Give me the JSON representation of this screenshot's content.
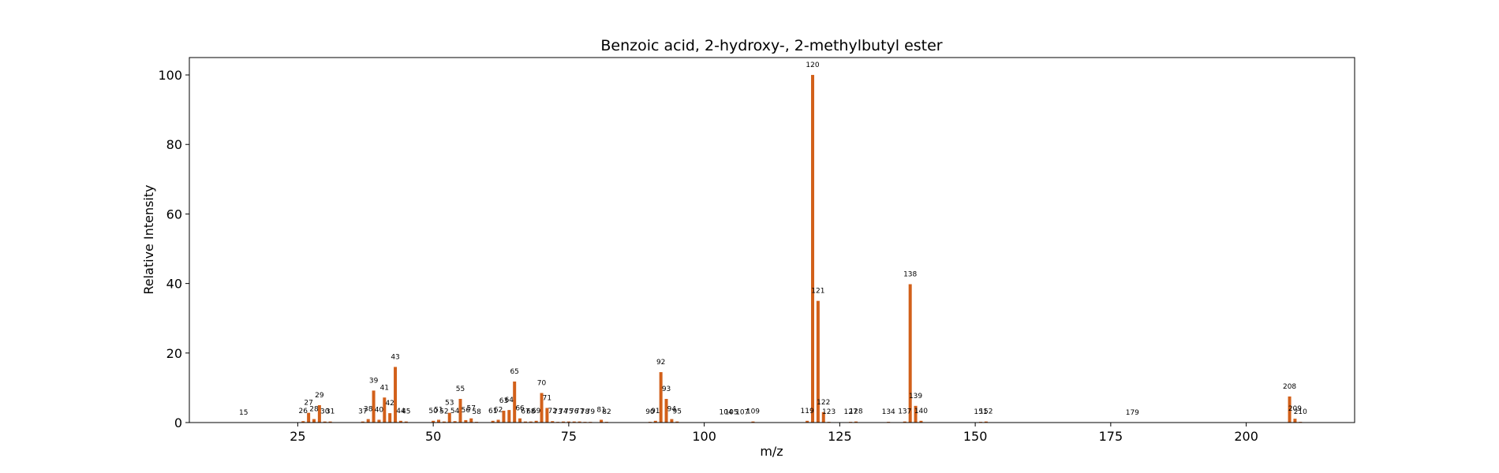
{
  "chart_data": {
    "type": "bar",
    "title": "Benzoic acid, 2-hydroxy-, 2-methylbutyl ester",
    "xlabel": "m/z",
    "ylabel": "Relative Intensity",
    "xlim": [
      5,
      220
    ],
    "ylim": [
      0,
      105
    ],
    "xticks": [
      25,
      50,
      75,
      100,
      125,
      150,
      175,
      200
    ],
    "yticks": [
      0,
      20,
      40,
      60,
      80,
      100
    ],
    "grid": false,
    "bar_color": "#D2601A",
    "peaks": [
      {
        "mz": 15,
        "intensity": 0.0
      },
      {
        "mz": 26,
        "intensity": 0.4
      },
      {
        "mz": 27,
        "intensity": 2.8
      },
      {
        "mz": 28,
        "intensity": 1.0
      },
      {
        "mz": 29,
        "intensity": 5.0
      },
      {
        "mz": 30,
        "intensity": 0.3
      },
      {
        "mz": 31,
        "intensity": 0.3
      },
      {
        "mz": 37,
        "intensity": 0.3
      },
      {
        "mz": 38,
        "intensity": 1.0
      },
      {
        "mz": 39,
        "intensity": 9.2
      },
      {
        "mz": 40,
        "intensity": 0.8
      },
      {
        "mz": 41,
        "intensity": 7.2
      },
      {
        "mz": 42,
        "intensity": 2.7
      },
      {
        "mz": 43,
        "intensity": 16.0
      },
      {
        "mz": 44,
        "intensity": 0.5
      },
      {
        "mz": 45,
        "intensity": 0.3
      },
      {
        "mz": 50,
        "intensity": 0.5
      },
      {
        "mz": 51,
        "intensity": 0.8
      },
      {
        "mz": 52,
        "intensity": 0.3
      },
      {
        "mz": 53,
        "intensity": 2.8
      },
      {
        "mz": 54,
        "intensity": 0.4
      },
      {
        "mz": 55,
        "intensity": 6.8
      },
      {
        "mz": 56,
        "intensity": 0.7
      },
      {
        "mz": 57,
        "intensity": 1.2
      },
      {
        "mz": 58,
        "intensity": 0.2
      },
      {
        "mz": 61,
        "intensity": 0.5
      },
      {
        "mz": 62,
        "intensity": 0.8
      },
      {
        "mz": 63,
        "intensity": 3.4
      },
      {
        "mz": 64,
        "intensity": 3.6
      },
      {
        "mz": 65,
        "intensity": 11.8
      },
      {
        "mz": 66,
        "intensity": 1.2
      },
      {
        "mz": 67,
        "intensity": 0.3
      },
      {
        "mz": 68,
        "intensity": 0.3
      },
      {
        "mz": 69,
        "intensity": 0.5
      },
      {
        "mz": 70,
        "intensity": 8.5
      },
      {
        "mz": 71,
        "intensity": 4.2
      },
      {
        "mz": 72,
        "intensity": 0.4
      },
      {
        "mz": 73,
        "intensity": 0.2
      },
      {
        "mz": 74,
        "intensity": 0.3
      },
      {
        "mz": 75,
        "intensity": 0.3
      },
      {
        "mz": 76,
        "intensity": 0.3
      },
      {
        "mz": 77,
        "intensity": 0.3
      },
      {
        "mz": 78,
        "intensity": 0.2
      },
      {
        "mz": 79,
        "intensity": 0.2
      },
      {
        "mz": 81,
        "intensity": 0.8
      },
      {
        "mz": 82,
        "intensity": 0.2
      },
      {
        "mz": 90,
        "intensity": 0.2
      },
      {
        "mz": 91,
        "intensity": 0.5
      },
      {
        "mz": 92,
        "intensity": 14.5
      },
      {
        "mz": 93,
        "intensity": 6.8
      },
      {
        "mz": 94,
        "intensity": 1.0
      },
      {
        "mz": 95,
        "intensity": 0.3
      },
      {
        "mz": 104,
        "intensity": 0.1
      },
      {
        "mz": 105,
        "intensity": 0.1
      },
      {
        "mz": 107,
        "intensity": 0.1
      },
      {
        "mz": 109,
        "intensity": 0.3
      },
      {
        "mz": 119,
        "intensity": 0.5
      },
      {
        "mz": 120,
        "intensity": 100.0
      },
      {
        "mz": 121,
        "intensity": 35.0
      },
      {
        "mz": 122,
        "intensity": 3.0
      },
      {
        "mz": 123,
        "intensity": 0.2
      },
      {
        "mz": 127,
        "intensity": 0.2
      },
      {
        "mz": 128,
        "intensity": 0.3
      },
      {
        "mz": 134,
        "intensity": 0.2
      },
      {
        "mz": 137,
        "intensity": 0.3
      },
      {
        "mz": 138,
        "intensity": 39.8
      },
      {
        "mz": 139,
        "intensity": 4.8
      },
      {
        "mz": 140,
        "intensity": 0.5
      },
      {
        "mz": 151,
        "intensity": 0.2
      },
      {
        "mz": 152,
        "intensity": 0.3
      },
      {
        "mz": 179,
        "intensity": 0.0
      },
      {
        "mz": 208,
        "intensity": 7.5
      },
      {
        "mz": 209,
        "intensity": 1.1
      },
      {
        "mz": 210,
        "intensity": 0.2
      }
    ]
  }
}
